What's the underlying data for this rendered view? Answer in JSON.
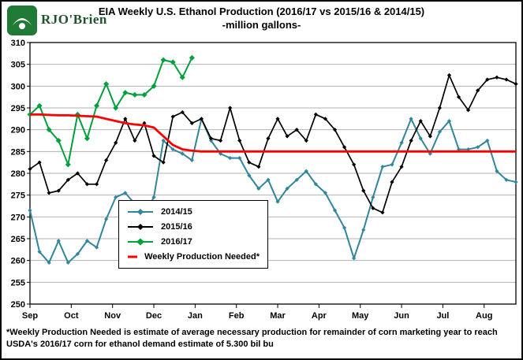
{
  "brand": {
    "name": "RJO'Brien"
  },
  "colors": {
    "brand_green": "#1e7a34",
    "grid": "#b3b3b3",
    "axis": "#000000"
  },
  "header": {
    "title": "EIA Weekly U.S. Ethanol Production (2016/17 vs 2015/16 & 2014/15)",
    "subtitle": "-million gallons-"
  },
  "footnote": "*Weekly Production Needed is estimate of average necessary production for remainder of corn marketing year to reach USDA's 2016/17 corn for ethanol demand estimate of 5.300 bil bu",
  "chart_data": {
    "type": "line",
    "title": "EIA Weekly U.S. Ethanol Production (2016/17 vs 2015/16 & 2014/15)",
    "subtitle": "-million gallons-",
    "xlabel": "",
    "ylabel": "million gallons",
    "ylim": [
      250,
      310
    ],
    "ytick_step": 5,
    "grid": true,
    "legend_position": "center-left",
    "x_months": [
      "Sep",
      "Oct",
      "Nov",
      "Dec",
      "Jan",
      "Feb",
      "Mar",
      "Apr",
      "May",
      "Jun",
      "Jul",
      "Aug"
    ],
    "weeks_per_year": 52,
    "series": [
      {
        "name": "2014/15",
        "color": "#31859C",
        "marker": "diamond",
        "values": [
          271.5,
          262,
          259.5,
          264.5,
          259.5,
          261.5,
          264.5,
          263,
          269.5,
          274.5,
          275.5,
          273,
          270.5,
          274.5,
          287.5,
          285.5,
          284.5,
          283,
          292.5,
          287.5,
          284.5,
          283.5,
          283.5,
          279.5,
          276.5,
          278.5,
          273.5,
          276.5,
          278.5,
          280.5,
          277.5,
          275.5,
          271.5,
          267.5,
          260.5,
          267,
          274.5,
          281.5,
          282,
          287,
          292.5,
          288,
          284.5,
          289.5,
          292,
          285.5,
          285.5,
          286,
          287.5,
          280.5,
          278.5,
          278
        ]
      },
      {
        "name": "2015/16",
        "color": "#000000",
        "marker": "diamond",
        "values": [
          281,
          282.5,
          275.5,
          276,
          278.5,
          280,
          277.5,
          277.5,
          283,
          287,
          292.5,
          287.5,
          291.5,
          284,
          282.5,
          293,
          294,
          291.5,
          292.5,
          288,
          287.5,
          295,
          287.5,
          282.5,
          281.5,
          288,
          292.5,
          288.5,
          290,
          287.5,
          293.5,
          292.5,
          290,
          286,
          282,
          276,
          272,
          271,
          278,
          281.5,
          287.5,
          292,
          288.5,
          295,
          302.5,
          297.5,
          294.5,
          299,
          301.5,
          302,
          301.5,
          300.5
        ]
      },
      {
        "name": "2016/17",
        "color": "#00A03C",
        "marker": "diamond",
        "values": [
          293.5,
          295.5,
          290,
          287.5,
          282,
          293.5,
          288,
          295.5,
          300.5,
          295,
          298.5,
          298,
          298,
          300,
          306,
          305.5,
          302,
          306.5
        ]
      },
      {
        "name": "Weekly Production Needed*",
        "color": "#FF0000",
        "marker": "none",
        "values": [
          293.5,
          293.5,
          293.4,
          293.3,
          293.3,
          293.2,
          293.1,
          293,
          292.5,
          292,
          291.5,
          291.2,
          291,
          290.5,
          288.5,
          286.5,
          285.5,
          285.2,
          285,
          285,
          285,
          285,
          285,
          285,
          285,
          285,
          285,
          285,
          285,
          285,
          285,
          285,
          285,
          285,
          285,
          285,
          285,
          285,
          285,
          285,
          285,
          285,
          285,
          285,
          285,
          285,
          285,
          285,
          285,
          285,
          285,
          285
        ]
      }
    ]
  }
}
